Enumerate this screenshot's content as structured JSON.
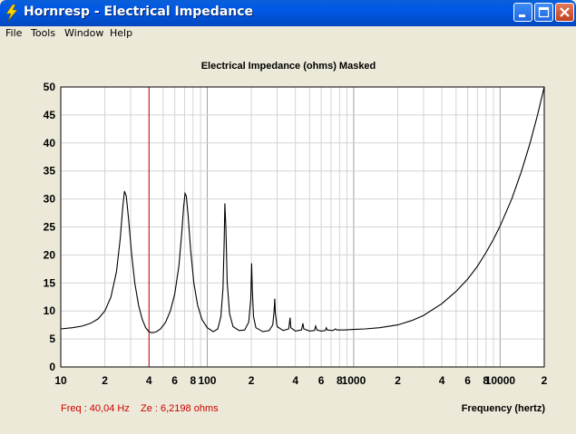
{
  "window": {
    "title": "Hornresp - Electrical Impedance",
    "controls": [
      "minimize",
      "maximize",
      "close"
    ]
  },
  "menu": [
    "File",
    "Tools",
    "Window",
    "Help"
  ],
  "chart": {
    "title": "Electrical Impedance (ohms)   Masked",
    "xlabel": "Frequency (hertz)",
    "cursor_readout": {
      "freq": "Freq : 40,04 Hz",
      "ze": "Ze : 6,2198 ohms"
    },
    "colors": {
      "trace": "#000000",
      "cursor": "#CC0000",
      "readout": "#CC0000",
      "grid": "#C8C8C8",
      "plot_bg": "#FFFFFF"
    }
  },
  "chart_data": {
    "type": "line",
    "title": "Electrical Impedance (ohms)   Masked",
    "xlabel": "Frequency (hertz)",
    "ylabel": "",
    "x_scale": "log",
    "xlim": [
      10,
      20000
    ],
    "ylim": [
      0,
      50
    ],
    "grid": true,
    "x_tick_labels": [
      {
        "value": 10,
        "label": "10"
      },
      {
        "value": 20,
        "label": "2"
      },
      {
        "value": 40,
        "label": "4"
      },
      {
        "value": 60,
        "label": "6"
      },
      {
        "value": 80,
        "label": "8"
      },
      {
        "value": 100,
        "label": "100"
      },
      {
        "value": 200,
        "label": "2"
      },
      {
        "value": 400,
        "label": "4"
      },
      {
        "value": 600,
        "label": "6"
      },
      {
        "value": 800,
        "label": "8"
      },
      {
        "value": 1000,
        "label": "1000"
      },
      {
        "value": 2000,
        "label": "2"
      },
      {
        "value": 4000,
        "label": "4"
      },
      {
        "value": 6000,
        "label": "6"
      },
      {
        "value": 8000,
        "label": "8"
      },
      {
        "value": 10000,
        "label": "10000"
      },
      {
        "value": 20000,
        "label": "2"
      }
    ],
    "y_ticks": [
      0,
      5,
      10,
      15,
      20,
      25,
      30,
      35,
      40,
      45,
      50
    ],
    "cursor": {
      "freq": 40.04,
      "ze": 6.2198
    },
    "series": [
      {
        "points": [
          [
            10,
            6.8
          ],
          [
            12,
            7.0
          ],
          [
            14,
            7.3
          ],
          [
            16,
            7.8
          ],
          [
            18,
            8.6
          ],
          [
            20,
            10.0
          ],
          [
            22,
            12.5
          ],
          [
            24,
            17.0
          ],
          [
            25.5,
            23.0
          ],
          [
            26.5,
            28.5
          ],
          [
            27.2,
            31.4
          ],
          [
            28,
            30.5
          ],
          [
            29,
            26.5
          ],
          [
            30.5,
            20.0
          ],
          [
            32,
            15.0
          ],
          [
            34,
            11.0
          ],
          [
            36,
            8.5
          ],
          [
            38,
            7.0
          ],
          [
            40,
            6.3
          ],
          [
            42,
            6.1
          ],
          [
            45,
            6.3
          ],
          [
            48,
            6.8
          ],
          [
            52,
            8.0
          ],
          [
            56,
            10.0
          ],
          [
            60,
            13.0
          ],
          [
            64,
            18.0
          ],
          [
            67,
            24.0
          ],
          [
            69,
            28.5
          ],
          [
            70.5,
            31.0
          ],
          [
            72,
            30.5
          ],
          [
            74,
            27.0
          ],
          [
            77,
            21.0
          ],
          [
            81,
            15.0
          ],
          [
            86,
            11.0
          ],
          [
            92,
            8.5
          ],
          [
            100,
            7.0
          ],
          [
            110,
            6.3
          ],
          [
            118,
            6.8
          ],
          [
            124,
            9.0
          ],
          [
            128,
            14.0
          ],
          [
            130.5,
            22.0
          ],
          [
            132,
            29.2
          ],
          [
            134,
            25.0
          ],
          [
            137,
            15.0
          ],
          [
            142,
            9.5
          ],
          [
            150,
            7.2
          ],
          [
            165,
            6.5
          ],
          [
            180,
            6.6
          ],
          [
            192,
            8.0
          ],
          [
            198,
            12.0
          ],
          [
            201,
            18.5
          ],
          [
            203,
            14.0
          ],
          [
            207,
            9.0
          ],
          [
            215,
            7.0
          ],
          [
            240,
            6.3
          ],
          [
            265,
            6.5
          ],
          [
            280,
            7.5
          ],
          [
            286,
            10.0
          ],
          [
            289,
            12.2
          ],
          [
            292,
            9.5
          ],
          [
            300,
            7.2
          ],
          [
            330,
            6.5
          ],
          [
            360,
            6.8
          ],
          [
            368,
            8.8
          ],
          [
            372,
            7.0
          ],
          [
            400,
            6.4
          ],
          [
            440,
            6.6
          ],
          [
            450,
            7.8
          ],
          [
            456,
            6.8
          ],
          [
            500,
            6.4
          ],
          [
            540,
            6.5
          ],
          [
            550,
            7.3
          ],
          [
            560,
            6.6
          ],
          [
            600,
            6.4
          ],
          [
            640,
            6.5
          ],
          [
            650,
            7.0
          ],
          [
            660,
            6.6
          ],
          [
            720,
            6.5
          ],
          [
            750,
            6.8
          ],
          [
            770,
            6.6
          ],
          [
            850,
            6.6
          ],
          [
            1000,
            6.7
          ],
          [
            1200,
            6.8
          ],
          [
            1500,
            7.0
          ],
          [
            2000,
            7.5
          ],
          [
            2500,
            8.3
          ],
          [
            3000,
            9.2
          ],
          [
            4000,
            11.3
          ],
          [
            5000,
            13.5
          ],
          [
            6000,
            15.7
          ],
          [
            7000,
            18.0
          ],
          [
            8000,
            20.4
          ],
          [
            9000,
            22.8
          ],
          [
            10000,
            25.2
          ],
          [
            12000,
            30.0
          ],
          [
            14000,
            35.0
          ],
          [
            16000,
            40.0
          ],
          [
            18000,
            45.0
          ],
          [
            20000,
            50.0
          ]
        ]
      }
    ]
  }
}
